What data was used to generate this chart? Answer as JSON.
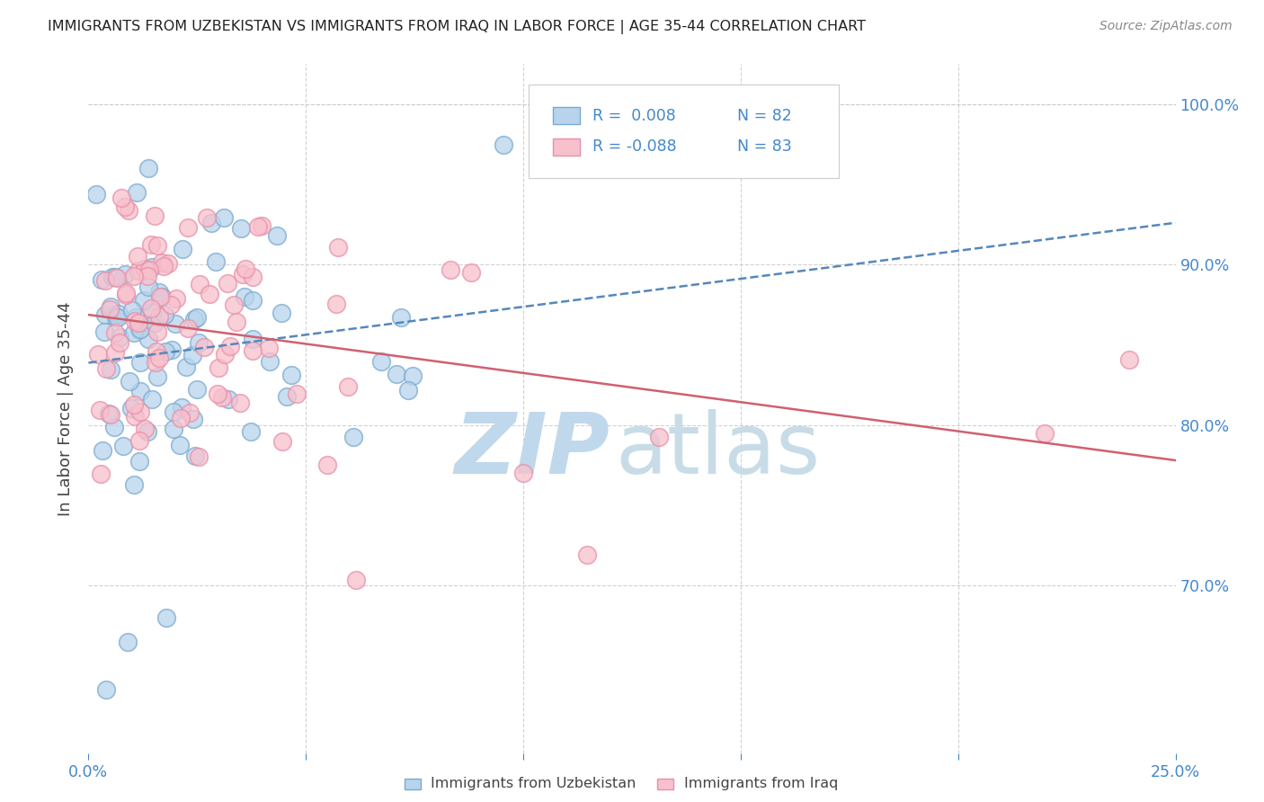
{
  "title": "IMMIGRANTS FROM UZBEKISTAN VS IMMIGRANTS FROM IRAQ IN LABOR FORCE | AGE 35-44 CORRELATION CHART",
  "source_text": "Source: ZipAtlas.com",
  "ylabel": "In Labor Force | Age 35-44",
  "xlim": [
    0.0,
    0.25
  ],
  "ylim": [
    0.595,
    1.025
  ],
  "yticks": [
    0.7,
    0.8,
    0.9,
    1.0
  ],
  "ytick_labels": [
    "70.0%",
    "80.0%",
    "90.0%",
    "100.0%"
  ],
  "xticks": [
    0.0,
    0.05,
    0.1,
    0.15,
    0.2,
    0.25
  ],
  "xtick_labels": [
    "0.0%",
    "",
    "",
    "",
    "",
    "25.0%"
  ],
  "color_uzbekistan_face": "#b8d4ec",
  "color_uzbekistan_edge": "#7aaad0",
  "color_iraq_face": "#f8c0cc",
  "color_iraq_edge": "#e890a8",
  "trend_color_uzbekistan": "#5588bb",
  "trend_color_iraq": "#d06070",
  "watermark_zip_color": "#c0d8ec",
  "watermark_atlas_color": "#c8dce8",
  "title_color": "#222222",
  "axis_tick_color": "#4488cc",
  "grid_color": "#cccccc",
  "legend_text_color": "#222222",
  "legend_r_color": "#4488cc",
  "background_color": "#ffffff"
}
